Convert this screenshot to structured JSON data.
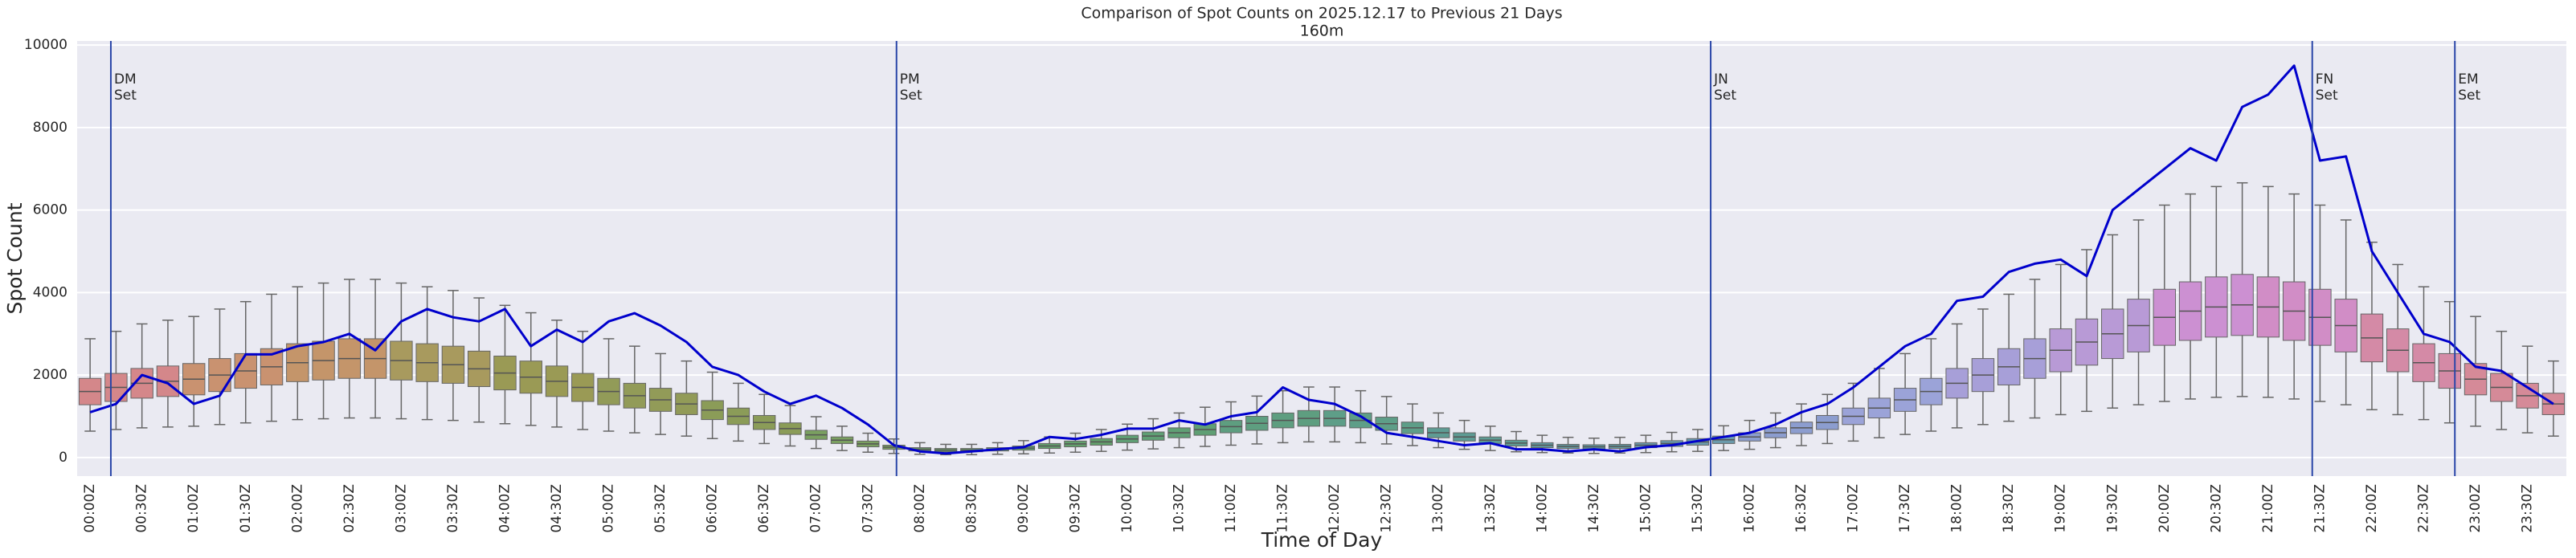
{
  "chart_data": {
    "type": "box",
    "title": "Comparison of Spot Counts on 2025.12.17 to Previous 21 Days",
    "subtitle": "160m",
    "x_label": "Time of Day",
    "y_label": "Spot Count",
    "ylim": [
      -450,
      10100
    ],
    "yticks": [
      0,
      2000,
      4000,
      6000,
      8000,
      10000
    ],
    "grid": true,
    "categories": [
      "00:00Z",
      null,
      "00:30Z",
      null,
      "01:00Z",
      null,
      "01:30Z",
      null,
      "02:00Z",
      null,
      "02:30Z",
      null,
      "03:00Z",
      null,
      "03:30Z",
      null,
      "04:00Z",
      null,
      "04:30Z",
      null,
      "05:00Z",
      null,
      "05:30Z",
      null,
      "06:00Z",
      null,
      "06:30Z",
      null,
      "07:00Z",
      null,
      "07:30Z",
      null,
      "08:00Z",
      null,
      "08:30Z",
      null,
      "09:00Z",
      null,
      "09:30Z",
      null,
      "10:00Z",
      null,
      "10:30Z",
      null,
      "11:00Z",
      null,
      "11:30Z",
      null,
      "12:00Z",
      null,
      "12:30Z",
      null,
      "13:00Z",
      null,
      "13:30Z",
      null,
      "14:00Z",
      null,
      "14:30Z",
      null,
      "15:00Z",
      null,
      "15:30Z",
      null,
      "16:00Z",
      null,
      "16:30Z",
      null,
      "17:00Z",
      null,
      "17:30Z",
      null,
      "18:00Z",
      null,
      "18:30Z",
      null,
      "19:00Z",
      null,
      "19:30Z",
      null,
      "20:00Z",
      null,
      "20:30Z",
      null,
      "21:00Z",
      null,
      "21:30Z",
      null,
      "22:00Z",
      null,
      "22:30Z",
      null,
      "23:00Z",
      null,
      "23:30Z",
      null
    ],
    "hour_colors": [
      "#d4878a",
      "#c99270",
      "#c4956a",
      "#a89a5e",
      "#9a9a55",
      "#929b58",
      "#8b9c58",
      "#7aa060",
      "#6a9e68",
      "#62a06c",
      "#5f9f74",
      "#5e9e80",
      "#5e9e88",
      "#5e9c94",
      "#619aa0",
      "#6a9aac",
      "#8c9dcf",
      "#9ba3d8",
      "#a79fd8",
      "#b89ad6",
      "#cc90d2",
      "#d18dc6",
      "#d48aa6",
      "#d58a98"
    ],
    "boxes_per_hour": 4,
    "whisker_low": [
      640,
      680,
      720,
      740,
      760,
      800,
      840,
      880,
      920,
      940,
      960,
      960,
      940,
      920,
      900,
      860,
      820,
      780,
      740,
      680,
      640,
      600,
      560,
      520,
      460,
      400,
      340,
      280,
      220,
      170,
      130,
      100,
      80,
      70,
      70,
      80,
      90,
      110,
      130,
      150,
      180,
      210,
      240,
      270,
      300,
      330,
      360,
      380,
      380,
      360,
      330,
      290,
      240,
      200,
      170,
      140,
      120,
      110,
      100,
      110,
      120,
      140,
      150,
      170,
      200,
      240,
      290,
      340,
      400,
      480,
      560,
      640,
      720,
      800,
      880,
      960,
      1040,
      1120,
      1200,
      1280,
      1360,
      1420,
      1460,
      1480,
      1460,
      1420,
      1360,
      1280,
      1160,
      1040,
      920,
      840,
      760,
      680,
      600,
      520
    ],
    "q1": [
      1280,
      1360,
      1440,
      1480,
      1520,
      1600,
      1680,
      1760,
      1840,
      1880,
      1920,
      1920,
      1880,
      1840,
      1800,
      1720,
      1640,
      1560,
      1480,
      1360,
      1280,
      1200,
      1120,
      1040,
      920,
      800,
      680,
      560,
      440,
      340,
      260,
      200,
      160,
      140,
      140,
      160,
      180,
      220,
      260,
      300,
      360,
      420,
      480,
      540,
      600,
      660,
      720,
      760,
      760,
      720,
      660,
      580,
      480,
      400,
      340,
      280,
      240,
      220,
      210,
      220,
      240,
      270,
      300,
      340,
      400,
      480,
      580,
      680,
      800,
      960,
      1120,
      1280,
      1440,
      1600,
      1760,
      1920,
      2080,
      2240,
      2400,
      2560,
      2720,
      2840,
      2920,
      2960,
      2920,
      2840,
      2720,
      2560,
      2320,
      2080,
      1840,
      1680,
      1520,
      1360,
      1200,
      1040
    ],
    "median": [
      1600,
      1700,
      1800,
      1850,
      1900,
      2000,
      2100,
      2200,
      2300,
      2350,
      2400,
      2400,
      2350,
      2300,
      2250,
      2150,
      2050,
      1950,
      1850,
      1700,
      1600,
      1500,
      1400,
      1300,
      1150,
      1000,
      850,
      700,
      550,
      420,
      330,
      250,
      200,
      180,
      180,
      200,
      230,
      280,
      330,
      380,
      450,
      520,
      600,
      680,
      750,
      830,
      900,
      950,
      950,
      900,
      820,
      720,
      600,
      500,
      420,
      350,
      300,
      270,
      260,
      270,
      300,
      340,
      380,
      430,
      500,
      600,
      720,
      850,
      1000,
      1200,
      1400,
      1600,
      1800,
      2000,
      2200,
      2400,
      2600,
      2800,
      3000,
      3200,
      3400,
      3550,
      3650,
      3700,
      3650,
      3550,
      3400,
      3200,
      2900,
      2600,
      2300,
      2100,
      1900,
      1700,
      1500,
      1300
    ],
    "q3": [
      1920,
      2040,
      2160,
      2220,
      2280,
      2400,
      2520,
      2640,
      2760,
      2820,
      2880,
      2880,
      2820,
      2760,
      2700,
      2580,
      2460,
      2340,
      2220,
      2040,
      1920,
      1800,
      1680,
      1560,
      1380,
      1200,
      1020,
      840,
      660,
      500,
      400,
      300,
      240,
      220,
      220,
      240,
      280,
      340,
      400,
      460,
      540,
      620,
      720,
      820,
      900,
      1000,
      1080,
      1140,
      1140,
      1080,
      980,
      860,
      720,
      600,
      500,
      420,
      360,
      320,
      310,
      320,
      360,
      410,
      460,
      520,
      600,
      720,
      860,
      1020,
      1200,
      1440,
      1680,
      1920,
      2160,
      2400,
      2640,
      2880,
      3120,
      3360,
      3600,
      3840,
      4080,
      4260,
      4380,
      4440,
      4380,
      4260,
      4080,
      3840,
      3480,
      3120,
      2760,
      2520,
      2280,
      2040,
      1800,
      1560
    ],
    "whisker_high": [
      2880,
      3060,
      3240,
      3330,
      3420,
      3600,
      3780,
      3960,
      4140,
      4230,
      4320,
      4320,
      4230,
      4140,
      4050,
      3870,
      3690,
      3510,
      3330,
      3060,
      2880,
      2700,
      2520,
      2340,
      2070,
      1800,
      1530,
      1260,
      990,
      760,
      590,
      450,
      360,
      320,
      320,
      360,
      410,
      500,
      590,
      680,
      810,
      940,
      1080,
      1220,
      1350,
      1490,
      1620,
      1710,
      1710,
      1620,
      1480,
      1300,
      1080,
      900,
      760,
      630,
      540,
      490,
      470,
      490,
      540,
      610,
      680,
      770,
      900,
      1080,
      1300,
      1530,
      1800,
      2160,
      2520,
      2880,
      3240,
      3600,
      3960,
      4320,
      4680,
      5040,
      5400,
      5760,
      6120,
      6390,
      6570,
      6660,
      6570,
      6390,
      6120,
      5760,
      5220,
      4680,
      4140,
      3780,
      3420,
      3060,
      2700,
      2340
    ],
    "overlay": {
      "type": "line",
      "color": "#0000cc",
      "values": [
        1100,
        1300,
        2000,
        1800,
        1300,
        1500,
        2500,
        2500,
        2700,
        2800,
        3000,
        2600,
        3300,
        3600,
        3400,
        3300,
        3600,
        2700,
        3100,
        2800,
        3300,
        3500,
        3200,
        2800,
        2200,
        2000,
        1600,
        1300,
        1500,
        1200,
        800,
        300,
        150,
        100,
        150,
        200,
        250,
        500,
        450,
        550,
        700,
        700,
        900,
        800,
        1000,
        1100,
        1700,
        1400,
        1300,
        1000,
        600,
        500,
        400,
        300,
        350,
        200,
        200,
        150,
        200,
        150,
        250,
        300,
        400,
        500,
        600,
        800,
        1100,
        1300,
        1700,
        2200,
        2700,
        3000,
        3800,
        3900,
        4500,
        4700,
        4800,
        4400,
        6000,
        6500,
        7000,
        7500,
        7200,
        8500,
        8800,
        9500,
        7200,
        7300,
        5000,
        4000,
        3000,
        2800,
        2200,
        2100,
        1700,
        1300
      ]
    },
    "marker_color": "#2a46a8",
    "markers": [
      {
        "at": 0.8,
        "label_lines": [
          "DM",
          "Set"
        ]
      },
      {
        "at": 31.1,
        "label_lines": [
          "PM",
          "Set"
        ]
      },
      {
        "at": 62.5,
        "label_lines": [
          "JN",
          "Set"
        ]
      },
      {
        "at": 85.7,
        "label_lines": [
          "FN",
          "Set"
        ]
      },
      {
        "at": 91.2,
        "label_lines": [
          "EM",
          "Set"
        ]
      }
    ]
  }
}
